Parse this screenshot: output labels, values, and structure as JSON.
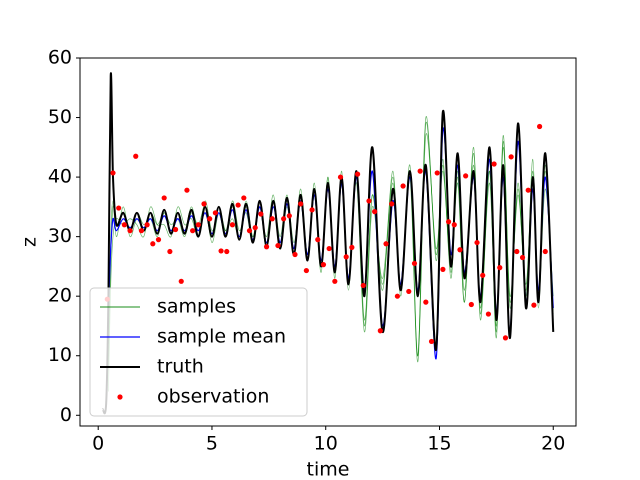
{
  "chart_data": {
    "type": "line",
    "xlabel": "time",
    "ylabel": "z",
    "xlim": [
      -0.8,
      21
    ],
    "ylim": [
      -1.8,
      60
    ],
    "xticks": [
      0,
      5,
      10,
      15,
      20
    ],
    "yticks": [
      0,
      10,
      20,
      30,
      40,
      50,
      60
    ],
    "legend": "lower left",
    "x": [
      0.2,
      0.35,
      0.45,
      0.55,
      0.65,
      0.8,
      1.1,
      1.4,
      1.7,
      2.0,
      2.3,
      2.6,
      2.9,
      3.2,
      3.5,
      3.8,
      4.1,
      4.4,
      4.7,
      5.0,
      5.3,
      5.6,
      5.9,
      6.2,
      6.5,
      6.8,
      7.1,
      7.4,
      7.7,
      8.0,
      8.3,
      8.6,
      8.9,
      9.2,
      9.5,
      9.8,
      10.1,
      10.4,
      10.7,
      11.0,
      11.35,
      11.7,
      12.05,
      12.5,
      12.95,
      13.3,
      13.7,
      14.05,
      14.4,
      14.85,
      15.15,
      15.5,
      15.8,
      16.1,
      16.5,
      16.8,
      17.2,
      17.5,
      17.8,
      18.1,
      18.45,
      18.8,
      19.1,
      19.35,
      19.65,
      20.0
    ],
    "series": [
      {
        "name": "samples",
        "color": "green",
        "style": "thin",
        "values": [
          [
            null,
            null,
            8,
            26,
            35,
            32,
            34,
            31,
            34,
            32,
            33,
            30,
            34,
            31,
            34,
            31,
            35,
            31,
            34,
            30,
            35,
            31,
            33,
            30,
            35,
            30,
            36,
            29,
            35,
            29,
            36,
            27,
            37,
            26,
            39,
            25,
            40,
            23,
            41,
            21,
            41,
            16,
            37,
            21,
            41,
            20,
            42,
            10,
            50,
            26,
            43,
            23,
            41,
            19,
            45,
            16,
            41,
            13,
            47,
            18,
            39,
            20,
            43,
            19,
            42,
            17
          ],
          [
            null,
            null,
            4,
            22,
            30,
            33,
            32,
            33,
            32,
            30,
            35,
            32,
            32,
            30,
            35,
            32,
            33,
            30,
            36,
            31,
            34,
            30,
            36,
            31,
            34,
            29,
            35,
            30,
            37,
            28,
            35,
            28,
            38,
            27,
            37,
            24,
            40,
            24,
            39,
            22,
            39,
            14,
            35,
            23,
            40,
            22,
            40,
            9,
            47,
            28,
            41,
            25,
            40,
            21,
            42,
            18,
            39,
            15,
            45,
            20,
            37,
            22,
            39,
            19,
            38,
            20
          ],
          [
            null,
            null,
            12,
            30,
            36,
            30,
            35,
            30,
            33,
            31,
            34,
            32,
            34,
            32,
            33,
            30,
            34,
            32,
            35,
            29,
            34,
            31,
            35,
            30,
            36,
            30,
            35,
            28,
            36,
            30,
            37,
            29,
            36,
            26,
            38,
            26,
            39,
            24,
            40,
            22,
            40,
            15,
            37,
            22,
            39,
            21,
            41,
            10,
            49,
            27,
            42,
            24,
            39,
            19,
            44,
            17,
            41,
            14,
            46,
            19,
            38,
            21,
            41,
            18,
            41,
            16
          ]
        ]
      },
      {
        "name": "sample mean",
        "color": "blue",
        "style": "line",
        "values": [
          null,
          null,
          18,
          28,
          33,
          31,
          33,
          31.5,
          33,
          31.5,
          33,
          31,
          33.5,
          31,
          33,
          31,
          33.5,
          31,
          34,
          30.5,
          34,
          30.5,
          34.5,
          30,
          34.5,
          29.5,
          35,
          29,
          35,
          29,
          35.5,
          28,
          36,
          27,
          37,
          26,
          38,
          25,
          39,
          23,
          40,
          21,
          41,
          15,
          36,
          22,
          40,
          21,
          41,
          9.5,
          48,
          27,
          42,
          24,
          40,
          20,
          43,
          17,
          40,
          14,
          46,
          19,
          38,
          21,
          40,
          18
        ]
      },
      {
        "name": "truth",
        "color": "black",
        "style": "thick",
        "values": [
          1,
          2,
          20,
          57,
          40,
          32,
          34,
          31,
          34,
          31,
          34,
          30.5,
          34.5,
          30.5,
          34,
          30.5,
          34.5,
          30,
          35,
          30,
          35,
          30,
          35.5,
          29.5,
          35.5,
          29,
          36,
          28.5,
          36,
          28,
          36.5,
          27,
          37,
          26,
          38,
          25,
          39,
          24,
          40,
          22,
          41,
          20,
          45,
          14,
          38,
          21,
          41,
          20,
          42,
          11,
          51,
          25,
          44,
          23,
          41,
          19,
          45,
          16,
          42,
          13,
          49,
          18,
          40,
          19,
          44,
          14
        ]
      },
      {
        "name": "observation",
        "color": "red",
        "style": "marker",
        "x": [
          0.4,
          0.65,
          0.9,
          1.15,
          1.4,
          1.65,
          1.9,
          2.15,
          2.4,
          2.65,
          2.9,
          3.15,
          3.4,
          3.65,
          3.9,
          4.15,
          4.4,
          4.65,
          4.9,
          5.15,
          5.4,
          5.65,
          5.9,
          6.15,
          6.4,
          6.65,
          6.9,
          7.15,
          7.4,
          7.65,
          7.9,
          8.15,
          8.4,
          8.65,
          8.9,
          9.15,
          9.4,
          9.65,
          9.9,
          10.15,
          10.4,
          10.65,
          10.9,
          11.15,
          11.4,
          11.65,
          11.9,
          12.15,
          12.4,
          12.65,
          12.9,
          13.15,
          13.4,
          13.65,
          13.9,
          14.15,
          14.4,
          14.65,
          14.9,
          15.15,
          15.4,
          15.65,
          15.9,
          16.15,
          16.4,
          16.65,
          16.9,
          17.15,
          17.4,
          17.65,
          17.9,
          18.15,
          18.4,
          18.65,
          18.9,
          19.15,
          19.4,
          19.65
        ],
        "values": [
          19.5,
          40.7,
          34.8,
          32,
          31,
          43.5,
          31,
          32,
          28.8,
          29.5,
          36.5,
          27.5,
          31.2,
          22.5,
          37.8,
          31,
          32,
          35.5,
          33,
          34,
          27.6,
          27.5,
          32,
          35.3,
          36.5,
          31,
          31.5,
          33.8,
          28.3,
          33,
          28.5,
          33,
          33.5,
          27,
          35.5,
          24.3,
          34.5,
          29.5,
          25.3,
          28,
          22.5,
          40,
          26.6,
          28.2,
          40.5,
          21.8,
          36,
          34.2,
          14.2,
          28.8,
          35.5,
          20,
          38.5,
          20.8,
          25.5,
          41,
          19,
          12.4,
          40.7,
          24.5,
          32.5,
          32,
          27.8,
          40.2,
          18.6,
          29,
          23.5,
          17,
          42.2,
          24.8,
          13,
          43.4,
          27.5,
          26.5,
          37.8,
          18.5,
          48.5,
          27.5
        ]
      }
    ]
  }
}
